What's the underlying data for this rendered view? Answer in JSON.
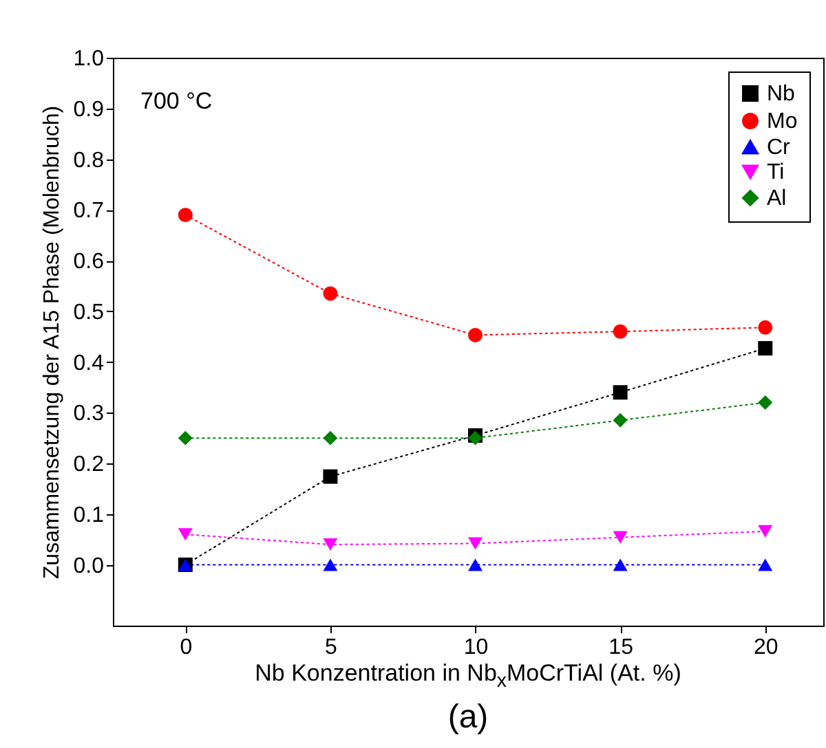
{
  "chart_data": {
    "type": "line",
    "xlabel": "Nb Konzentration in Nb$_{x}$MoCrTiAl (At. %)",
    "ylabel": "Zusammensetzung der A15 Phase (Molenbruch)",
    "x": [
      0,
      5,
      10,
      15,
      20
    ],
    "series": [
      {
        "name": "Nb",
        "color": "#000000",
        "marker": "square",
        "values": [
          0.0,
          0.174,
          0.255,
          0.34,
          0.427
        ]
      },
      {
        "name": "Mo",
        "color": "#ff0000",
        "marker": "circle",
        "values": [
          0.69,
          0.535,
          0.453,
          0.46,
          0.468
        ]
      },
      {
        "name": "Cr",
        "color": "#0000ff",
        "marker": "triangle",
        "values": [
          0,
          0,
          0,
          0,
          0
        ]
      },
      {
        "name": "Ti",
        "color": "#ff00ff",
        "marker": "triangle-down",
        "values": [
          0.06,
          0.04,
          0.042,
          0.054,
          0.066
        ]
      },
      {
        "name": "Al",
        "color": "#008000",
        "marker": "diamond",
        "values": [
          0.25,
          0.25,
          0.25,
          0.285,
          0.32
        ]
      }
    ],
    "xlim": [
      -2.5,
      22
    ],
    "xticks": [
      0,
      5,
      10,
      15,
      20
    ],
    "ylim": [
      -0.12,
      1.0
    ],
    "yticks": [
      {
        "value": 0,
        "label": "0.0"
      },
      0.1,
      0.2,
      0.3,
      0.4,
      0.5,
      0.6,
      0.7,
      0.8,
      0.9,
      {
        "value": 1,
        "label": "1.0"
      }
    ],
    "grid": false,
    "legend": "top right",
    "line_style": "dotted",
    "annotations": [
      "700 °C",
      "(a)"
    ]
  }
}
